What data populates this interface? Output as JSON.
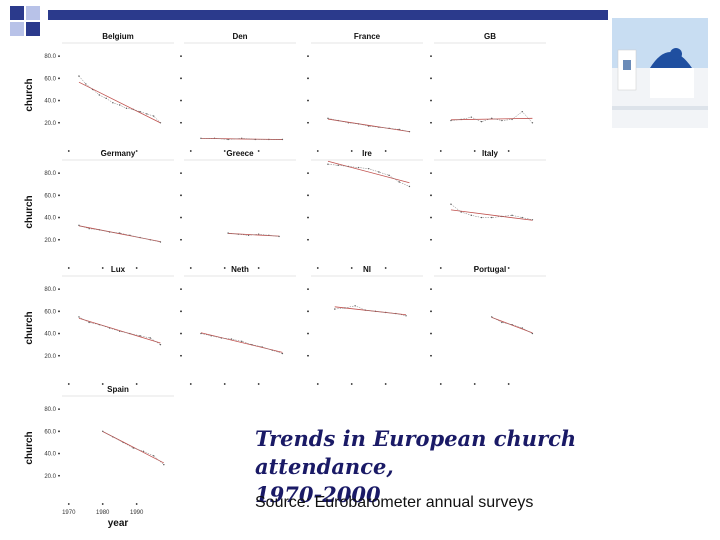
{
  "slide": {
    "caption_line1": "Trends in European church attendance,",
    "caption_line2": "1970-2000",
    "source": "Source: Eurobarometer annual surveys"
  },
  "colors": {
    "header_blue": "#2b3a8c",
    "header_light": "#b8c2e8",
    "line": "#c0504d",
    "dots": "#555555"
  },
  "chart_data": {
    "type": "line",
    "layout": "small-multiples",
    "ylabel": "church",
    "xlabel": "year",
    "ylim": [
      0,
      90
    ],
    "x_ticks": [
      1970,
      1980,
      1990
    ],
    "y_ticks": [
      20,
      40,
      60,
      80
    ],
    "y_tick_labels": [
      "20.0",
      "40.0",
      "60.0",
      "80.0"
    ],
    "panels": [
      {
        "name": "Belgium",
        "x": [
          1973,
          1975,
          1977,
          1979,
          1981,
          1983,
          1985,
          1987,
          1989,
          1991,
          1993,
          1995,
          1997
        ],
        "y": [
          62,
          55,
          50,
          45,
          42,
          38,
          36,
          33,
          32,
          30,
          28,
          26,
          20
        ]
      },
      {
        "name": "Den",
        "x": [
          1973,
          1977,
          1981,
          1985,
          1989,
          1993,
          1997
        ],
        "y": [
          6,
          6,
          5,
          6,
          5,
          5,
          5
        ]
      },
      {
        "name": "France",
        "x": [
          1973,
          1976,
          1979,
          1982,
          1985,
          1988,
          1991,
          1994,
          1997
        ],
        "y": [
          24,
          22,
          20,
          19,
          17,
          16,
          15,
          14,
          12
        ]
      },
      {
        "name": "GB",
        "x": [
          1973,
          1976,
          1979,
          1982,
          1985,
          1988,
          1991,
          1994,
          1997
        ],
        "y": [
          22,
          23,
          25,
          21,
          24,
          22,
          23,
          30,
          20
        ]
      },
      {
        "name": "Germany",
        "x": [
          1973,
          1976,
          1979,
          1982,
          1985,
          1988,
          1991,
          1994,
          1997
        ],
        "y": [
          33,
          30,
          29,
          27,
          26,
          24,
          22,
          20,
          18
        ]
      },
      {
        "name": "Greece",
        "x": [
          1981,
          1984,
          1987,
          1990,
          1993,
          1996
        ],
        "y": [
          26,
          25,
          24,
          25,
          24,
          23
        ]
      },
      {
        "name": "Ire",
        "x": [
          1973,
          1976,
          1979,
          1982,
          1985,
          1988,
          1991,
          1994,
          1997
        ],
        "y": [
          88,
          87,
          86,
          85,
          84,
          81,
          78,
          72,
          68
        ]
      },
      {
        "name": "Italy",
        "x": [
          1973,
          1976,
          1979,
          1982,
          1985,
          1988,
          1991,
          1994,
          1997
        ],
        "y": [
          52,
          45,
          42,
          40,
          40,
          41,
          42,
          40,
          38
        ]
      },
      {
        "name": "Lux",
        "x": [
          1973,
          1976,
          1979,
          1982,
          1985,
          1988,
          1991,
          1994,
          1997
        ],
        "y": [
          55,
          50,
          48,
          45,
          42,
          40,
          38,
          36,
          30
        ]
      },
      {
        "name": "Neth",
        "x": [
          1973,
          1976,
          1979,
          1982,
          1985,
          1988,
          1991,
          1994,
          1997
        ],
        "y": [
          40,
          38,
          36,
          35,
          33,
          30,
          28,
          25,
          22
        ]
      },
      {
        "name": "NI",
        "x": [
          1975,
          1978,
          1981,
          1984,
          1987,
          1990,
          1993,
          1996
        ],
        "y": [
          62,
          63,
          65,
          61,
          60,
          59,
          58,
          56
        ]
      },
      {
        "name": "Portugal",
        "x": [
          1985,
          1988,
          1991,
          1994,
          1997
        ],
        "y": [
          55,
          50,
          48,
          45,
          40
        ]
      },
      {
        "name": "Spain",
        "x": [
          1980,
          1983,
          1986,
          1989,
          1992,
          1995,
          1998
        ],
        "y": [
          60,
          55,
          50,
          45,
          42,
          38,
          30
        ]
      }
    ]
  }
}
